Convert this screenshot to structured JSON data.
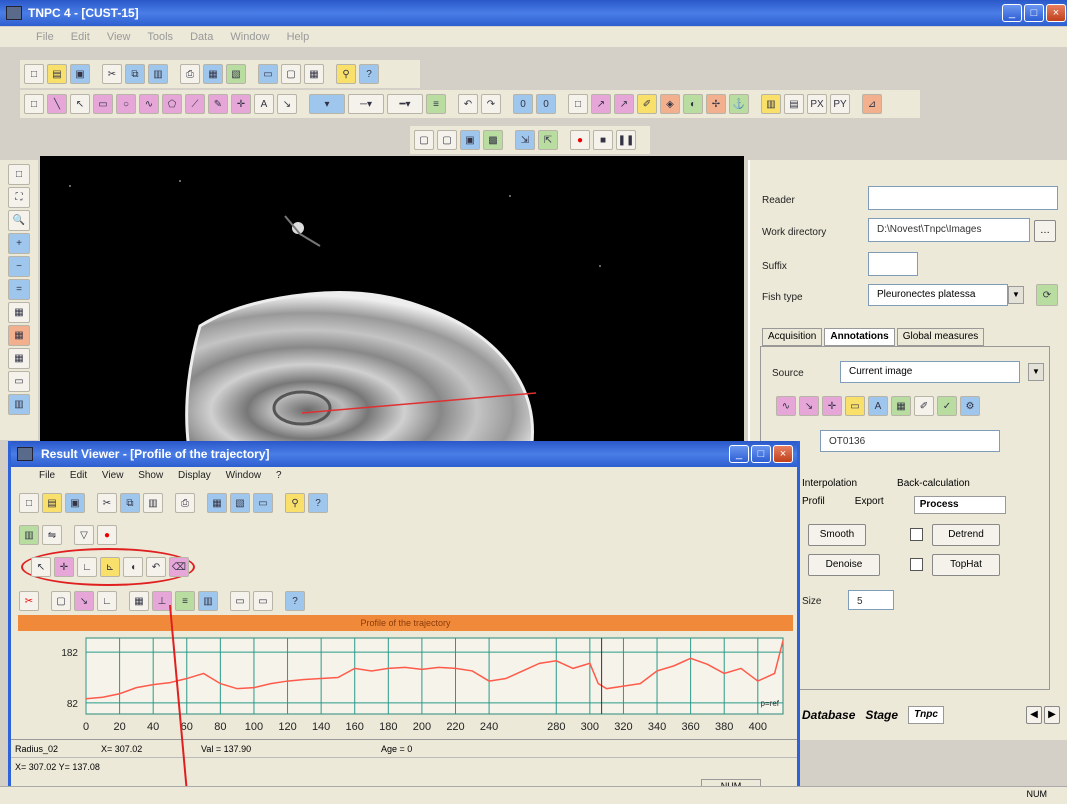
{
  "window": {
    "title": "TNPC 4 - [CUST-15]"
  },
  "menu": [
    "File",
    "Edit",
    "View",
    "Tools",
    "Data",
    "Window",
    "Help"
  ],
  "right_panel": {
    "reader_label": "Reader",
    "reader_value": "",
    "workdir_label": "Work directory",
    "workdir_value": "D:\\Novest\\Tnpc\\Images",
    "suffix_label": "Suffix",
    "suffix_value": "",
    "fishtype_label": "Fish type",
    "fishtype_value": "Pleuronectes platessa",
    "tabs": [
      "Acquisition",
      "Annotations",
      "Global measures"
    ],
    "source_label": "Source",
    "source_value": "Current image",
    "id_value": "OT0136",
    "sub_tabs": [
      "Interpolation",
      "Back-calculation"
    ],
    "sub_tabs2": [
      "Profil",
      "Export",
      "Process"
    ],
    "smooth_label": "Smooth",
    "detrend_label": "Detrend",
    "denoise_label": "Denoise",
    "tophat_label": "TopHat",
    "size_label": "Size",
    "size_value": "5",
    "bottom_tabs": [
      "Database",
      "Stage",
      "Tnpc"
    ]
  },
  "result_viewer": {
    "title": "Result Viewer - [Profile of the trajectory]",
    "menu": [
      "File",
      "Edit",
      "View",
      "Show",
      "Display",
      "Window",
      "?"
    ],
    "chart_title": "Profile of the trajectory",
    "status_radius": "Radius_02",
    "status_x": "X= 307.02",
    "status_val": "Val = 137.90",
    "status_age": "Age = 0",
    "status_coord": "X= 307.02  Y= 137.08",
    "num_label": "NUM"
  },
  "bottom_status": "NUM",
  "chart_data": {
    "type": "line",
    "title": "Profile of the trajectory",
    "xlabel": "",
    "ylabel": "",
    "x_ticks": [
      0,
      20,
      40,
      60,
      80,
      100,
      120,
      140,
      160,
      180,
      200,
      220,
      240,
      280,
      300,
      320,
      340,
      360,
      380,
      400
    ],
    "y_ticks": [
      82,
      182
    ],
    "xlim": [
      0,
      415
    ],
    "ylim": [
      60,
      210
    ],
    "series": [
      {
        "color": "#ff5a4a",
        "x": [
          0,
          10,
          20,
          30,
          40,
          50,
          60,
          70,
          80,
          90,
          100,
          110,
          120,
          130,
          140,
          150,
          160,
          170,
          180,
          190,
          200,
          210,
          220,
          230,
          240,
          250,
          260,
          270,
          280,
          290,
          300,
          305,
          310,
          320,
          330,
          340,
          350,
          360,
          370,
          380,
          390,
          400,
          410,
          415
        ],
        "y": [
          90,
          93,
          100,
          112,
          118,
          122,
          130,
          140,
          120,
          110,
          112,
          120,
          125,
          128,
          130,
          132,
          150,
          145,
          150,
          152,
          148,
          152,
          150,
          145,
          125,
          130,
          145,
          160,
          165,
          150,
          160,
          120,
          110,
          115,
          120,
          145,
          155,
          170,
          158,
          140,
          150,
          125,
          140,
          205
        ]
      }
    ],
    "annotation": "p=ref"
  }
}
